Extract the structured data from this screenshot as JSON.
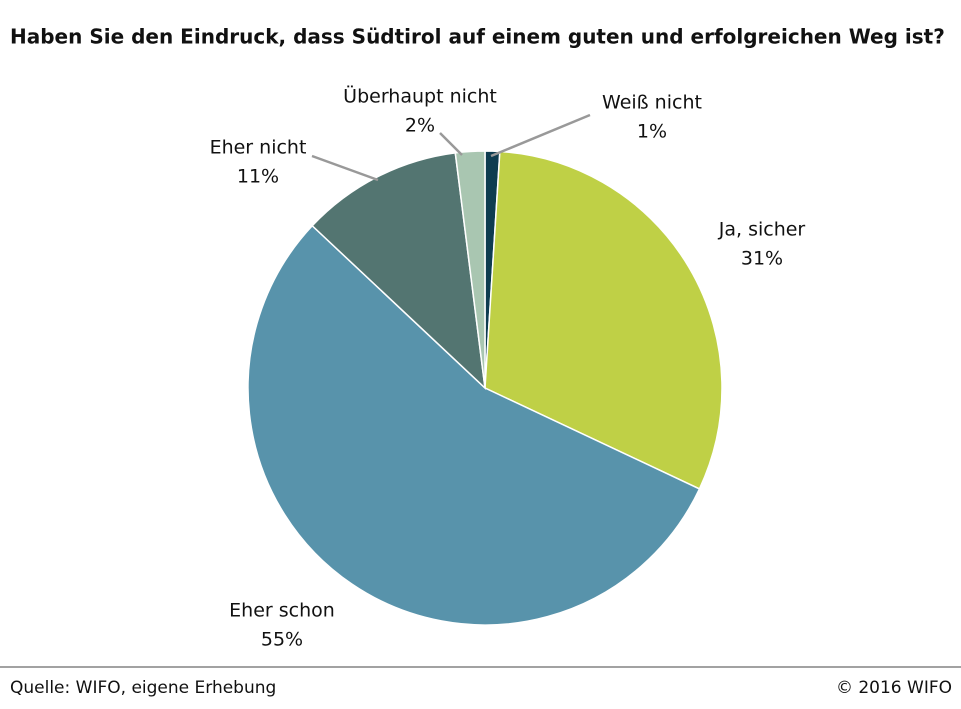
{
  "chart_data": {
    "type": "pie",
    "title": "Haben Sie den Eindruck, dass Südtirol auf einem guten und erfolgreichen Weg ist?",
    "categories": [
      "Weiß nicht",
      "Ja, sicher",
      "Eher schon",
      "Eher nicht",
      "Überhaupt nicht"
    ],
    "values": [
      1,
      31,
      55,
      11,
      2
    ],
    "value_labels": [
      "1%",
      "31%",
      "55%",
      "11%",
      "2%"
    ],
    "colors": [
      "#0e3c50",
      "#bfd046",
      "#5893ab",
      "#537571",
      "#a9c6b1"
    ],
    "source": "Quelle: WIFO, eigene Erhebung",
    "copyright": "© 2016 WIFO"
  }
}
